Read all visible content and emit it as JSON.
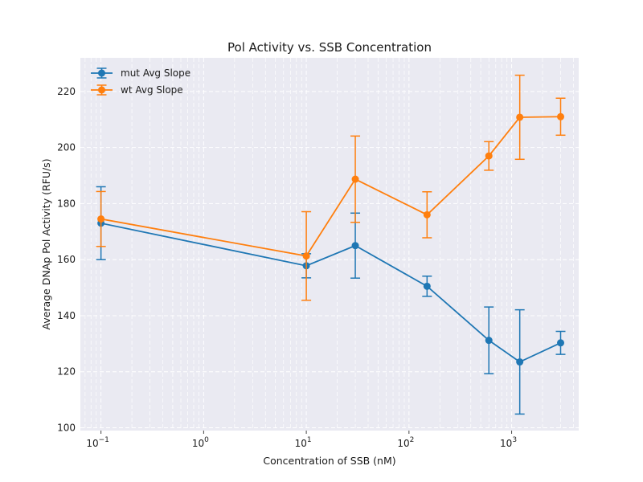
{
  "chart_data": {
    "type": "line",
    "title": "Pol Activity vs. SSB Concentration",
    "xlabel": "Concentration of SSB (nM)",
    "ylabel": "Average DNAp Pol Activity (RFU/s)",
    "xscale": "log",
    "xlim": [
      0.063,
      4500
    ],
    "ylim": [
      99,
      232
    ],
    "x_ticks": [
      {
        "value": 0.1,
        "base": "10",
        "exp": "−1"
      },
      {
        "value": 1,
        "base": "10",
        "exp": "0"
      },
      {
        "value": 10,
        "base": "10",
        "exp": "1"
      },
      {
        "value": 100,
        "base": "10",
        "exp": "2"
      },
      {
        "value": 1000,
        "base": "10",
        "exp": "3"
      }
    ],
    "y_ticks": [
      100,
      120,
      140,
      160,
      180,
      200,
      220
    ],
    "grid": true,
    "legend_position": "top-left",
    "series": [
      {
        "name": "mut Avg Slope",
        "color": "#1f77b4",
        "x": [
          0.1,
          10,
          30,
          150,
          600,
          1200,
          3000
        ],
        "y": [
          173.0,
          157.8,
          165.0,
          150.5,
          131.2,
          123.5,
          130.3
        ],
        "err": [
          13.0,
          4.3,
          11.6,
          3.6,
          11.9,
          18.6,
          4.1
        ]
      },
      {
        "name": "wt Avg Slope",
        "color": "#ff7f0e",
        "x": [
          0.1,
          10,
          30,
          150,
          600,
          1200,
          3000
        ],
        "y": [
          174.5,
          161.3,
          188.7,
          176.0,
          197.0,
          210.8,
          211.0
        ],
        "err": [
          9.8,
          15.8,
          15.4,
          8.2,
          5.1,
          15.0,
          6.6
        ]
      }
    ]
  }
}
